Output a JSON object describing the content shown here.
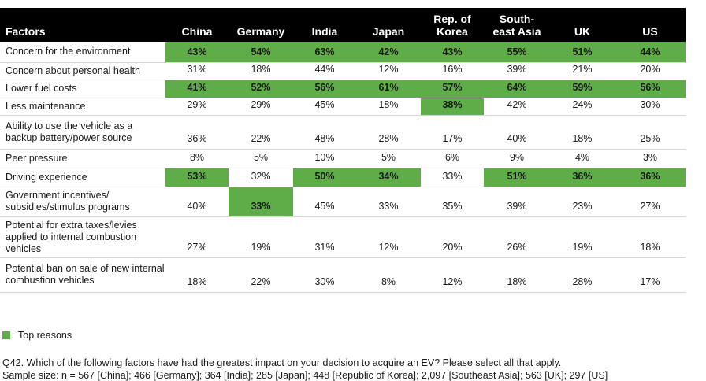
{
  "chart_data": {
    "type": "table",
    "header": {
      "factor_label": "Factors",
      "columns": [
        "China",
        "Germany",
        "India",
        "Japan",
        "Rep. of Korea",
        "South-east Asia",
        "UK",
        "US"
      ]
    },
    "rows": [
      {
        "factor": "Concern for the environment",
        "values": [
          "43%",
          "54%",
          "63%",
          "42%",
          "43%",
          "55%",
          "51%",
          "44%"
        ],
        "highlight": [
          1,
          1,
          1,
          1,
          1,
          1,
          1,
          1
        ]
      },
      {
        "factor": "Concern about personal health",
        "values": [
          "31%",
          "18%",
          "44%",
          "12%",
          "16%",
          "39%",
          "21%",
          "20%"
        ],
        "highlight": [
          0,
          0,
          0,
          0,
          0,
          0,
          0,
          0
        ]
      },
      {
        "factor": "Lower fuel costs",
        "values": [
          "41%",
          "52%",
          "56%",
          "61%",
          "57%",
          "64%",
          "59%",
          "56%"
        ],
        "highlight": [
          1,
          1,
          1,
          1,
          1,
          1,
          1,
          1
        ]
      },
      {
        "factor": "Less maintenance",
        "values": [
          "29%",
          "29%",
          "45%",
          "18%",
          "38%",
          "42%",
          "24%",
          "30%"
        ],
        "highlight": [
          0,
          0,
          0,
          0,
          1,
          0,
          0,
          0
        ]
      },
      {
        "factor": "Ability to use the vehicle as a backup battery/power source",
        "values": [
          "36%",
          "22%",
          "48%",
          "28%",
          "17%",
          "40%",
          "18%",
          "25%"
        ],
        "highlight": [
          0,
          0,
          0,
          0,
          0,
          0,
          0,
          0
        ]
      },
      {
        "factor": "Peer pressure",
        "values": [
          "8%",
          "5%",
          "10%",
          "5%",
          "6%",
          "9%",
          "4%",
          "3%"
        ],
        "highlight": [
          0,
          0,
          0,
          0,
          0,
          0,
          0,
          0
        ]
      },
      {
        "factor": "Driving experience",
        "values": [
          "53%",
          "32%",
          "50%",
          "34%",
          "33%",
          "51%",
          "36%",
          "36%"
        ],
        "highlight": [
          1,
          0,
          1,
          1,
          0,
          1,
          1,
          1
        ]
      },
      {
        "factor": "Government incentives/ subsidies/stimulus programs",
        "values": [
          "40%",
          "33%",
          "45%",
          "33%",
          "35%",
          "39%",
          "23%",
          "27%"
        ],
        "highlight": [
          0,
          1,
          0,
          0,
          0,
          0,
          0,
          0
        ]
      },
      {
        "factor": "Potential for extra taxes/levies applied to internal combustion vehicles",
        "values": [
          "27%",
          "19%",
          "31%",
          "12%",
          "20%",
          "26%",
          "19%",
          "18%"
        ],
        "highlight": [
          0,
          0,
          0,
          0,
          0,
          0,
          0,
          0
        ]
      },
      {
        "factor": "Potential ban on sale of new internal combustion vehicles",
        "values": [
          "18%",
          "22%",
          "30%",
          "8%",
          "12%",
          "18%",
          "28%",
          "17%"
        ],
        "highlight": [
          0,
          0,
          0,
          0,
          0,
          0,
          0,
          0
        ]
      }
    ],
    "legend": {
      "label": "Top reasons",
      "color": "#5fad48"
    }
  },
  "notes": {
    "question": "Q42. Which of the following factors have had the greatest impact on your decision to acquire an EV? Please select all that apply.",
    "sample": "Sample size: n = 567 [China]; 466 [Germany]; 364 [India]; 285 [Japan]; 448 [Republic of Korea]; 2,097 [Southeast Asia]; 563 [UK]; 297 [US]"
  },
  "colors": {
    "header_bg": "#000000",
    "highlight": "#5fad48",
    "divider": "#d6d6d6"
  }
}
